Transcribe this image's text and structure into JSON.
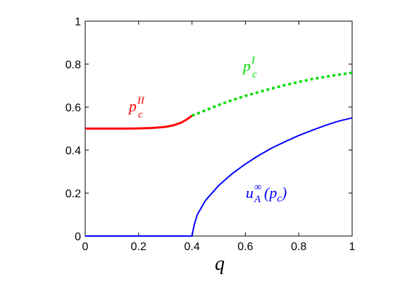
{
  "chart_data": {
    "type": "line",
    "xlabel": "q",
    "ylabel": "",
    "xlim": [
      0,
      1
    ],
    "ylim": [
      0,
      1
    ],
    "xticks": [
      0,
      0.2,
      0.4,
      0.6,
      0.8,
      1
    ],
    "xtick_labels": [
      "0",
      "0.2",
      "0.4",
      "0.6",
      "0.8",
      "1"
    ],
    "yticks": [
      0,
      0.2,
      0.4,
      0.6,
      0.8,
      1
    ],
    "ytick_labels": [
      "0",
      "0.2",
      "0.4",
      "0.6",
      "0.8",
      "1"
    ],
    "grid": false,
    "legend": "none",
    "series": [
      {
        "label_parts": {
          "base": "p",
          "sub": "c",
          "sup": "II"
        },
        "color": "#ff0000",
        "style": "solid",
        "x": [
          0,
          0.05,
          0.1,
          0.15,
          0.2,
          0.25,
          0.3,
          0.33,
          0.36,
          0.38,
          0.4
        ],
        "y": [
          0.5,
          0.5,
          0.5,
          0.5,
          0.501,
          0.503,
          0.508,
          0.515,
          0.528,
          0.542,
          0.56
        ]
      },
      {
        "label_parts": {
          "base": "p",
          "sub": "c",
          "sup": "I"
        },
        "color": "#00dd00",
        "style": "dotted",
        "x": [
          0.4,
          0.45,
          0.5,
          0.55,
          0.6,
          0.65,
          0.7,
          0.75,
          0.8,
          0.85,
          0.9,
          0.95,
          1.0
        ],
        "y": [
          0.56,
          0.585,
          0.61,
          0.632,
          0.652,
          0.67,
          0.687,
          0.703,
          0.717,
          0.73,
          0.741,
          0.751,
          0.76
        ]
      },
      {
        "label_parts": {
          "base": "u",
          "sub": "A",
          "sup": "∞",
          "arg": "(p",
          "arg_sub": "c",
          "arg_close": ")"
        },
        "color": "#0000ff",
        "style": "solid",
        "x": [
          0,
          0.2,
          0.4,
          0.403,
          0.41,
          0.42,
          0.45,
          0.5,
          0.55,
          0.6,
          0.65,
          0.7,
          0.75,
          0.8,
          0.85,
          0.9,
          0.95,
          1.0
        ],
        "y": [
          0,
          0,
          0,
          0.02,
          0.06,
          0.1,
          0.165,
          0.235,
          0.29,
          0.335,
          0.375,
          0.41,
          0.44,
          0.468,
          0.492,
          0.515,
          0.535,
          0.55
        ]
      }
    ]
  }
}
